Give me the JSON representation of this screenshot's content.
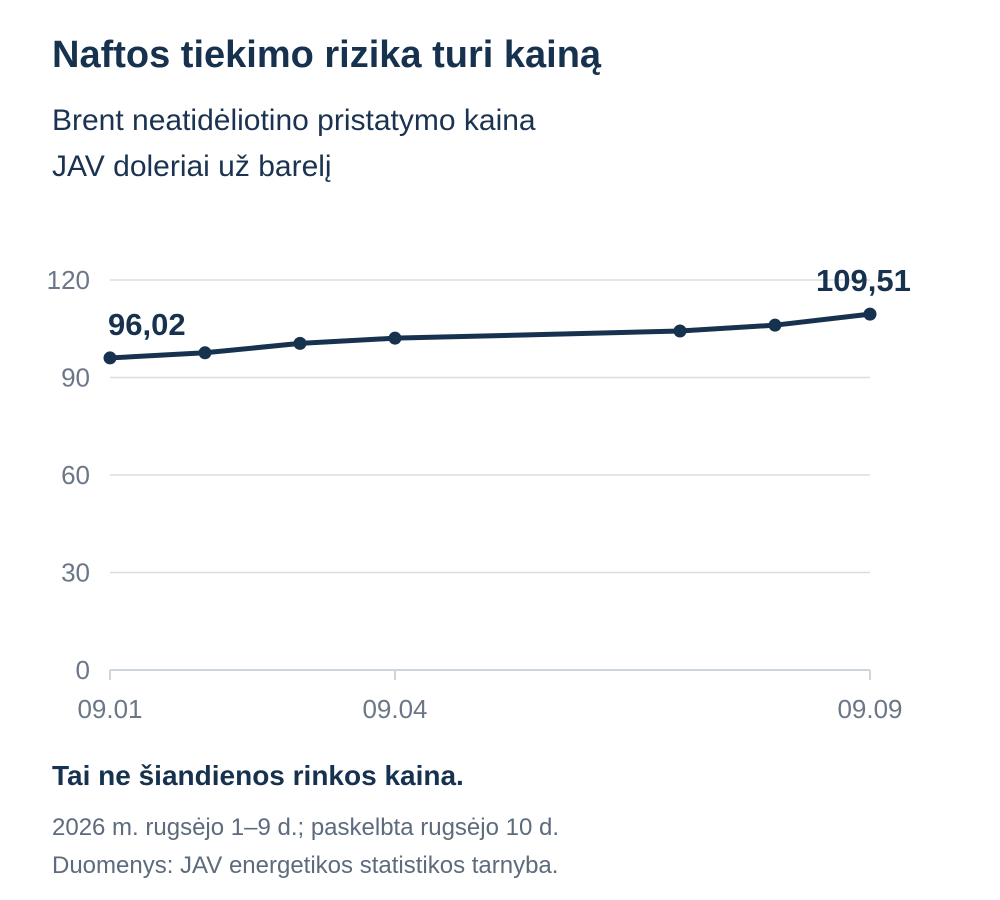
{
  "header": {
    "title": "Naftos tiekimo rizika turi kainą",
    "subtitle_line1": "Brent neatidėliotino pristatymo kaina",
    "subtitle_line2": "JAV doleriai už barelį"
  },
  "chart_data": {
    "type": "line",
    "title": "Naftos tiekimo rizika turi kainą",
    "subtitle": [
      "Brent neatidėliotino pristatymo kaina",
      "JAV doleriai už barelį"
    ],
    "xlabel": "",
    "ylabel": "",
    "x_domain": [
      1,
      9
    ],
    "ylim": [
      0,
      120
    ],
    "y_ticks": [
      0,
      30,
      60,
      90,
      120
    ],
    "y_tick_labels": [
      "0",
      "30",
      "60",
      "90",
      "120"
    ],
    "x_ticks": [
      1,
      4,
      9
    ],
    "x_tick_labels": [
      "09.01",
      "09.04",
      "09.09"
    ],
    "grid": true,
    "legend": "none",
    "series": [
      {
        "x": [
          1,
          2,
          3,
          4,
          7,
          8,
          9
        ],
        "values": [
          96.02,
          97.6,
          100.5,
          102.1,
          104.3,
          106.1,
          109.51
        ]
      }
    ],
    "data_labels": [
      {
        "x": 1,
        "text": "96,02"
      },
      {
        "x": 9,
        "text": "109,51"
      }
    ],
    "colors": {
      "line": "#17324f",
      "grid": "#d9dee4",
      "axis": "#cfd5dc",
      "tick_text": "#6b7787",
      "label_text": "#17324f"
    }
  },
  "footer": {
    "note": "Tai ne šiandienos rinkos kaina.",
    "line1": "2026 m. rugsėjo 1–9 d.; paskelbta rugsėjo 10 d.",
    "line2": "Duomenys: JAV energetikos statistikos tarnyba."
  }
}
